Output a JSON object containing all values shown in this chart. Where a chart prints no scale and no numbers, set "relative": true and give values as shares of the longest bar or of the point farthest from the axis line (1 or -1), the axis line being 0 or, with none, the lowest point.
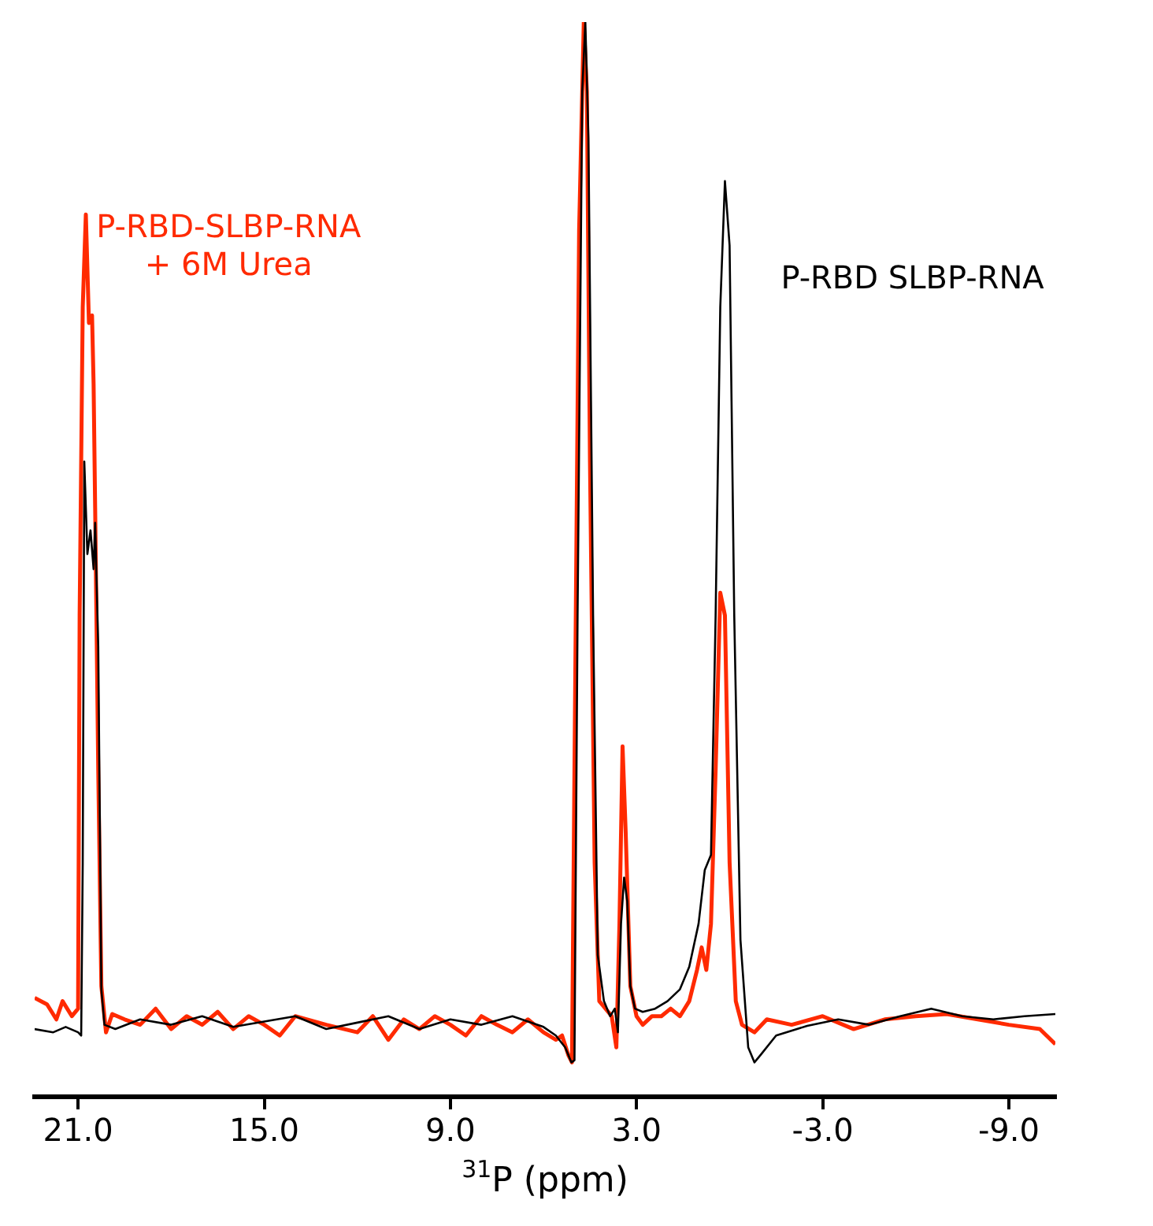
{
  "chart_data": {
    "type": "line",
    "xlabel": "$^{31}$P (ppm)",
    "relative": true,
    "marker": "none",
    "xlim": [
      22.4,
      -10.5
    ],
    "xticks": [
      {
        "value": 21,
        "label": "21.0"
      },
      {
        "value": 15,
        "label": "15.0"
      },
      {
        "value": 9,
        "label": "9.0"
      },
      {
        "value": 3,
        "label": "3.0"
      },
      {
        "value": -3,
        "label": "-3.0"
      },
      {
        "value": -9,
        "label": "-9.0"
      }
    ],
    "series": [
      {
        "name": "P-RBD-SLBP-RNA + 6M Urea",
        "color": "#ff2a00",
        "x": [
          22.4,
          22.0,
          21.7,
          21.5,
          21.2,
          21.0,
          20.95,
          20.85,
          20.75,
          20.65,
          20.55,
          20.5,
          20.45,
          20.35,
          20.25,
          20.1,
          19.9,
          19.5,
          19.0,
          18.5,
          18.0,
          17.5,
          17.0,
          16.5,
          16.0,
          15.5,
          15.0,
          14.5,
          14.0,
          13.0,
          12.0,
          11.5,
          11.0,
          10.5,
          10.0,
          9.5,
          9.0,
          8.5,
          8.0,
          7.5,
          7.0,
          6.5,
          6.0,
          5.6,
          5.4,
          5.2,
          5.08,
          5.0,
          4.85,
          4.7,
          4.6,
          4.5,
          4.35,
          4.2,
          4.0,
          3.8,
          3.65,
          3.55,
          3.45,
          3.35,
          3.2,
          3.0,
          2.8,
          2.5,
          2.2,
          1.9,
          1.6,
          1.3,
          1.05,
          0.9,
          0.75,
          0.6,
          0.45,
          0.3,
          0.15,
          0.0,
          -0.2,
          -0.4,
          -0.8,
          -1.2,
          -2.0,
          -3.0,
          -4.0,
          -5.0,
          -6.0,
          -7.0,
          -8.0,
          -9.0,
          -10.0,
          -10.5
        ],
        "values": [
          0.092,
          0.086,
          0.072,
          0.089,
          0.075,
          0.082,
          0.448,
          0.735,
          0.821,
          0.72,
          0.727,
          0.663,
          0.548,
          0.304,
          0.103,
          0.06,
          0.077,
          0.072,
          0.067,
          0.082,
          0.063,
          0.075,
          0.067,
          0.079,
          0.063,
          0.075,
          0.067,
          0.057,
          0.075,
          0.067,
          0.06,
          0.075,
          0.053,
          0.072,
          0.063,
          0.075,
          0.067,
          0.057,
          0.075,
          0.067,
          0.06,
          0.072,
          0.06,
          0.053,
          0.057,
          0.039,
          0.032,
          0.304,
          0.806,
          1,
          0.935,
          0.591,
          0.218,
          0.089,
          0.082,
          0.075,
          0.046,
          0.161,
          0.326,
          0.247,
          0.103,
          0.075,
          0.067,
          0.075,
          0.075,
          0.082,
          0.075,
          0.089,
          0.118,
          0.139,
          0.118,
          0.161,
          0.304,
          0.469,
          0.448,
          0.218,
          0.089,
          0.067,
          0.06,
          0.072,
          0.067,
          0.075,
          0.063,
          0.072,
          0.075,
          0.077,
          0.072,
          0.067,
          0.063,
          0.049
        ]
      },
      {
        "name": "P-RBD SLBP-RNA",
        "color": "#000000",
        "x": [
          22.4,
          21.8,
          21.4,
          21.0,
          20.9,
          20.85,
          20.8,
          20.7,
          20.6,
          20.5,
          20.45,
          20.35,
          20.25,
          20.15,
          19.8,
          19.0,
          18.0,
          17.0,
          16.0,
          15.0,
          14.0,
          13.0,
          12.0,
          11.0,
          10.0,
          9.0,
          8.0,
          7.0,
          6.0,
          5.6,
          5.3,
          5.1,
          5.0,
          4.9,
          4.75,
          4.65,
          4.55,
          4.4,
          4.25,
          4.05,
          3.85,
          3.7,
          3.6,
          3.5,
          3.4,
          3.3,
          3.2,
          3.05,
          2.8,
          2.4,
          2.0,
          1.6,
          1.3,
          1.0,
          0.8,
          0.6,
          0.45,
          0.3,
          0.15,
          0.0,
          -0.15,
          -0.35,
          -0.6,
          -0.8,
          -1.0,
          -1.5,
          -2.5,
          -3.5,
          -4.5,
          -5.5,
          -6.5,
          -7.5,
          -8.5,
          -9.5,
          -10.5
        ],
        "values": [
          0.063,
          0.06,
          0.065,
          0.06,
          0.057,
          0.218,
          0.591,
          0.505,
          0.527,
          0.491,
          0.534,
          0.419,
          0.1,
          0.067,
          0.063,
          0.072,
          0.067,
          0.075,
          0.065,
          0.07,
          0.075,
          0.063,
          0.069,
          0.075,
          0.063,
          0.072,
          0.067,
          0.075,
          0.065,
          0.057,
          0.046,
          0.032,
          0.034,
          0.448,
          0.935,
          1,
          0.892,
          0.448,
          0.132,
          0.089,
          0.075,
          0.082,
          0.06,
          0.161,
          0.204,
          0.182,
          0.103,
          0.082,
          0.079,
          0.082,
          0.089,
          0.1,
          0.121,
          0.161,
          0.211,
          0.225,
          0.448,
          0.735,
          0.852,
          0.792,
          0.448,
          0.146,
          0.046,
          0.032,
          0.039,
          0.057,
          0.066,
          0.072,
          0.067,
          0.075,
          0.082,
          0.075,
          0.072,
          0.075,
          0.077
        ]
      }
    ]
  }
}
